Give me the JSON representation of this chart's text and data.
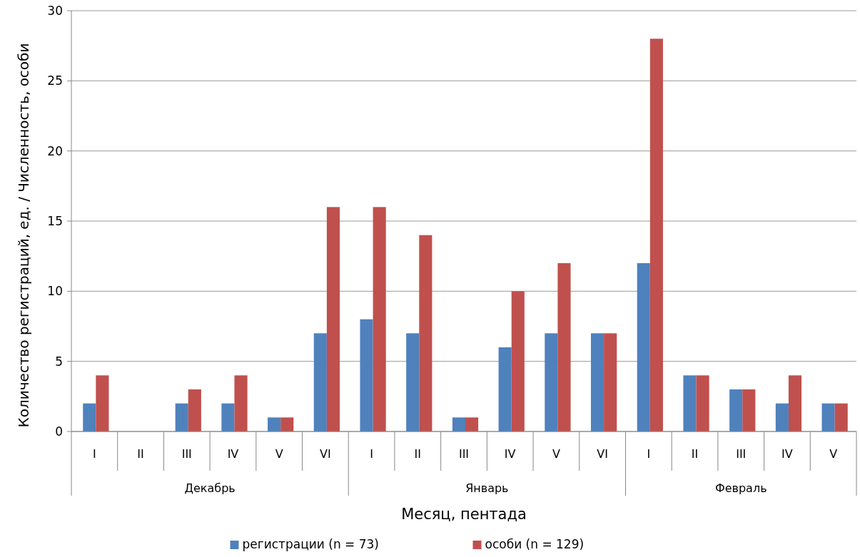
{
  "chart_data": {
    "type": "bar",
    "xlabel": "Месяц, пентада",
    "ylabel": "Количество регистраций, ед. / Численность, особи",
    "categories": [
      "I",
      "II",
      "III",
      "IV",
      "V",
      "VI",
      "I",
      "II",
      "III",
      "IV",
      "V",
      "VI",
      "I",
      "II",
      "III",
      "IV",
      "V"
    ],
    "series": [
      {
        "name": "регистрации (n = 73)",
        "color": "#4f81bd",
        "values": [
          2,
          0,
          2,
          2,
          1,
          7,
          8,
          7,
          1,
          6,
          7,
          7,
          12,
          4,
          3,
          2,
          2
        ]
      },
      {
        "name": "особи (n = 129)",
        "color": "#c0504d",
        "values": [
          4,
          0,
          3,
          4,
          1,
          16,
          16,
          14,
          1,
          10,
          12,
          7,
          28,
          4,
          3,
          4,
          2
        ]
      }
    ],
    "annotations": [
      "Декабрь",
      "Январь",
      "Февраль"
    ],
    "ylim": [
      0,
      30
    ],
    "yticks": [
      0,
      5,
      10,
      15,
      20,
      25,
      30
    ],
    "grid": "y",
    "legend": "bottom"
  }
}
